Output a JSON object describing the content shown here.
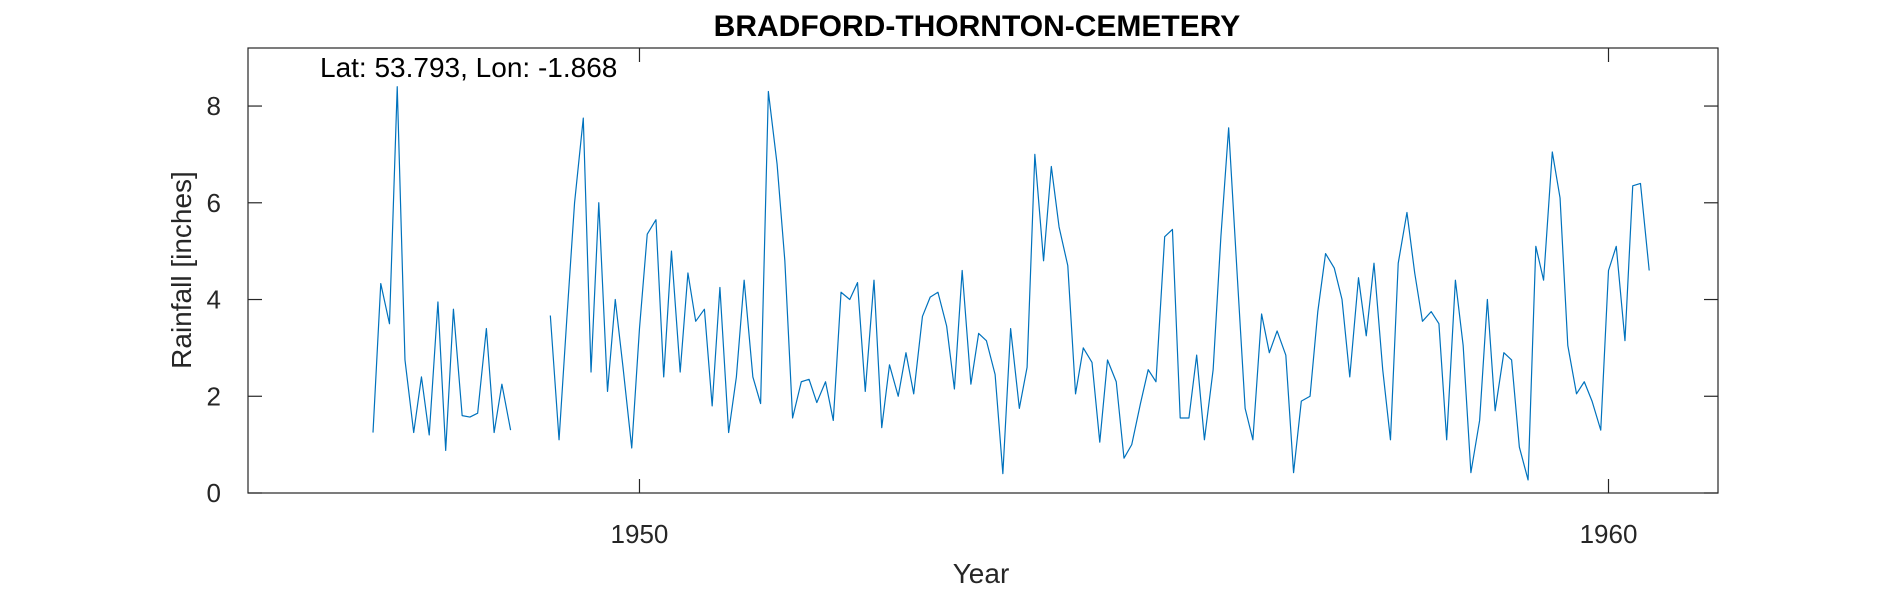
{
  "chart_data": {
    "type": "line",
    "title": "BRADFORD-THORNTON-CEMETERY",
    "annotation": "Lat: 53.793, Lon: -1.868",
    "xlabel": "Year",
    "ylabel": "Rainfall [inches]",
    "xlim": [
      1945.96,
      1961.13
    ],
    "ylim": [
      0,
      9.2
    ],
    "xticks": [
      1950,
      1960
    ],
    "xtick_labels": [
      "1950",
      "1960"
    ],
    "yticks": [
      0,
      2,
      4,
      6,
      8
    ],
    "ytick_labels": [
      "0",
      "2",
      "4",
      "6",
      "8"
    ],
    "grid": false,
    "box": true,
    "line_color": "#0072BD",
    "series": [
      {
        "values": [
          [
            1947.25,
            1.25
          ],
          [
            1947.33,
            4.33
          ],
          [
            1947.42,
            3.5
          ],
          [
            1947.5,
            8.4
          ],
          [
            1947.58,
            2.75
          ],
          [
            1947.67,
            1.25
          ],
          [
            1947.75,
            2.4
          ],
          [
            1947.83,
            1.2
          ],
          [
            1947.92,
            3.95
          ],
          [
            1948.0,
            0.88
          ],
          [
            1948.08,
            3.8
          ],
          [
            1948.17,
            1.6
          ],
          [
            1948.25,
            1.57
          ],
          [
            1948.33,
            1.65
          ],
          [
            1948.42,
            3.4
          ],
          [
            1948.5,
            1.25
          ],
          [
            1948.58,
            2.25
          ],
          [
            1948.67,
            1.3
          ],
          null,
          [
            1949.08,
            3.67
          ],
          [
            1949.17,
            1.1
          ],
          [
            1949.25,
            3.6
          ],
          [
            1949.33,
            6.0
          ],
          [
            1949.42,
            7.75
          ],
          [
            1949.5,
            2.5
          ],
          [
            1949.58,
            6.0
          ],
          [
            1949.67,
            2.1
          ],
          [
            1949.75,
            4.0
          ],
          [
            1949.83,
            2.6
          ],
          [
            1949.92,
            0.93
          ],
          [
            1950.0,
            3.4
          ],
          [
            1950.08,
            5.35
          ],
          [
            1950.17,
            5.65
          ],
          [
            1950.25,
            2.4
          ],
          [
            1950.33,
            5.0
          ],
          [
            1950.42,
            2.5
          ],
          [
            1950.5,
            4.55
          ],
          [
            1950.58,
            3.55
          ],
          [
            1950.67,
            3.8
          ],
          [
            1950.75,
            1.8
          ],
          [
            1950.83,
            4.25
          ],
          [
            1950.92,
            1.25
          ],
          [
            1951.0,
            2.4
          ],
          [
            1951.08,
            4.4
          ],
          [
            1951.17,
            2.4
          ],
          [
            1951.25,
            1.85
          ],
          [
            1951.33,
            8.3
          ],
          [
            1951.42,
            6.8
          ],
          [
            1951.5,
            4.8
          ],
          [
            1951.58,
            1.55
          ],
          [
            1951.67,
            2.3
          ],
          [
            1951.75,
            2.35
          ],
          [
            1951.83,
            1.87
          ],
          [
            1951.92,
            2.3
          ],
          [
            1952.0,
            1.5
          ],
          [
            1952.08,
            4.15
          ],
          [
            1952.17,
            4.0
          ],
          [
            1952.25,
            4.35
          ],
          [
            1952.33,
            2.1
          ],
          [
            1952.42,
            4.4
          ],
          [
            1952.5,
            1.35
          ],
          [
            1952.58,
            2.65
          ],
          [
            1952.67,
            2.0
          ],
          [
            1952.75,
            2.9
          ],
          [
            1952.83,
            2.05
          ],
          [
            1952.92,
            3.65
          ],
          [
            1953.0,
            4.05
          ],
          [
            1953.08,
            4.15
          ],
          [
            1953.17,
            3.45
          ],
          [
            1953.25,
            2.15
          ],
          [
            1953.33,
            4.6
          ],
          [
            1953.42,
            2.25
          ],
          [
            1953.5,
            3.3
          ],
          [
            1953.58,
            3.15
          ],
          [
            1953.67,
            2.45
          ],
          [
            1953.75,
            0.4
          ],
          [
            1953.83,
            3.4
          ],
          [
            1953.92,
            1.75
          ],
          [
            1954.0,
            2.6
          ],
          [
            1954.08,
            7.0
          ],
          [
            1954.17,
            4.8
          ],
          [
            1954.25,
            6.75
          ],
          [
            1954.33,
            5.5
          ],
          [
            1954.42,
            4.7
          ],
          [
            1954.5,
            2.05
          ],
          [
            1954.58,
            3.0
          ],
          [
            1954.67,
            2.7
          ],
          [
            1954.75,
            1.05
          ],
          [
            1954.83,
            2.75
          ],
          [
            1954.92,
            2.3
          ],
          [
            1955.0,
            0.72
          ],
          [
            1955.08,
            1.0
          ],
          [
            1955.17,
            1.85
          ],
          [
            1955.25,
            2.55
          ],
          [
            1955.33,
            2.3
          ],
          [
            1955.42,
            5.3
          ],
          [
            1955.5,
            5.45
          ],
          [
            1955.58,
            1.55
          ],
          [
            1955.67,
            1.55
          ],
          [
            1955.75,
            2.85
          ],
          [
            1955.83,
            1.1
          ],
          [
            1955.92,
            2.55
          ],
          [
            1956.0,
            5.3
          ],
          [
            1956.08,
            7.55
          ],
          [
            1956.17,
            4.45
          ],
          [
            1956.25,
            1.75
          ],
          [
            1956.33,
            1.1
          ],
          [
            1956.42,
            3.7
          ],
          [
            1956.5,
            2.9
          ],
          [
            1956.58,
            3.35
          ],
          [
            1956.67,
            2.85
          ],
          [
            1956.75,
            0.42
          ],
          [
            1956.83,
            1.9
          ],
          [
            1956.92,
            2.0
          ],
          [
            1957.0,
            3.75
          ],
          [
            1957.08,
            4.95
          ],
          [
            1957.17,
            4.65
          ],
          [
            1957.25,
            4.0
          ],
          [
            1957.33,
            2.4
          ],
          [
            1957.42,
            4.45
          ],
          [
            1957.5,
            3.25
          ],
          [
            1957.58,
            4.75
          ],
          [
            1957.67,
            2.55
          ],
          [
            1957.75,
            1.1
          ],
          [
            1957.83,
            4.75
          ],
          [
            1957.92,
            5.8
          ],
          [
            1958.0,
            4.55
          ],
          [
            1958.08,
            3.55
          ],
          [
            1958.17,
            3.75
          ],
          [
            1958.25,
            3.5
          ],
          [
            1958.33,
            1.1
          ],
          [
            1958.42,
            4.4
          ],
          [
            1958.5,
            3.05
          ],
          [
            1958.58,
            0.42
          ],
          [
            1958.67,
            1.5
          ],
          [
            1958.75,
            4.0
          ],
          [
            1958.83,
            1.7
          ],
          [
            1958.92,
            2.9
          ],
          [
            1959.0,
            2.75
          ],
          [
            1959.08,
            0.95
          ],
          [
            1959.17,
            0.27
          ],
          [
            1959.25,
            5.1
          ],
          [
            1959.33,
            4.4
          ],
          [
            1959.42,
            7.05
          ],
          [
            1959.5,
            6.1
          ],
          [
            1959.58,
            3.05
          ],
          [
            1959.67,
            2.05
          ],
          [
            1959.75,
            2.3
          ],
          [
            1959.83,
            1.9
          ],
          [
            1959.92,
            1.3
          ],
          [
            1960.0,
            4.6
          ],
          [
            1960.08,
            5.1
          ],
          [
            1960.17,
            3.15
          ],
          [
            1960.25,
            6.35
          ],
          [
            1960.33,
            6.4
          ],
          [
            1960.42,
            4.6
          ]
        ]
      }
    ]
  }
}
